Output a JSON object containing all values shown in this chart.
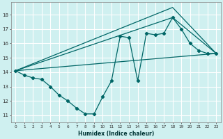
{
  "xlabel": "Humidex (Indice chaleur)",
  "bg_color": "#cff0f0",
  "grid_color": "#ffffff",
  "line_color": "#006666",
  "xlim": [
    -0.5,
    23.5
  ],
  "ylim": [
    10.5,
    18.85
  ],
  "xticks": [
    0,
    1,
    2,
    3,
    4,
    5,
    6,
    7,
    8,
    9,
    10,
    11,
    12,
    13,
    14,
    15,
    16,
    17,
    18,
    19,
    20,
    21,
    22,
    23
  ],
  "yticks": [
    11,
    12,
    13,
    14,
    15,
    16,
    17,
    18
  ],
  "series_x": [
    0,
    1,
    2,
    3,
    4,
    5,
    6,
    7,
    8,
    9,
    10,
    11,
    12,
    13,
    14,
    15,
    16,
    17,
    18,
    19,
    20,
    21,
    22,
    23
  ],
  "series_y": [
    14.1,
    13.8,
    13.6,
    13.5,
    13.0,
    12.4,
    12.0,
    11.5,
    11.1,
    11.1,
    12.3,
    13.4,
    16.5,
    16.4,
    13.4,
    16.7,
    16.6,
    16.7,
    17.8,
    17.0,
    16.0,
    15.5,
    15.3,
    15.3
  ],
  "straight_lines": [
    {
      "x": [
        0,
        23
      ],
      "y": [
        14.1,
        15.3
      ]
    },
    {
      "x": [
        0,
        18,
        23
      ],
      "y": [
        14.1,
        18.5,
        15.3
      ]
    },
    {
      "x": [
        0,
        18,
        23
      ],
      "y": [
        14.1,
        17.8,
        15.3
      ]
    }
  ]
}
